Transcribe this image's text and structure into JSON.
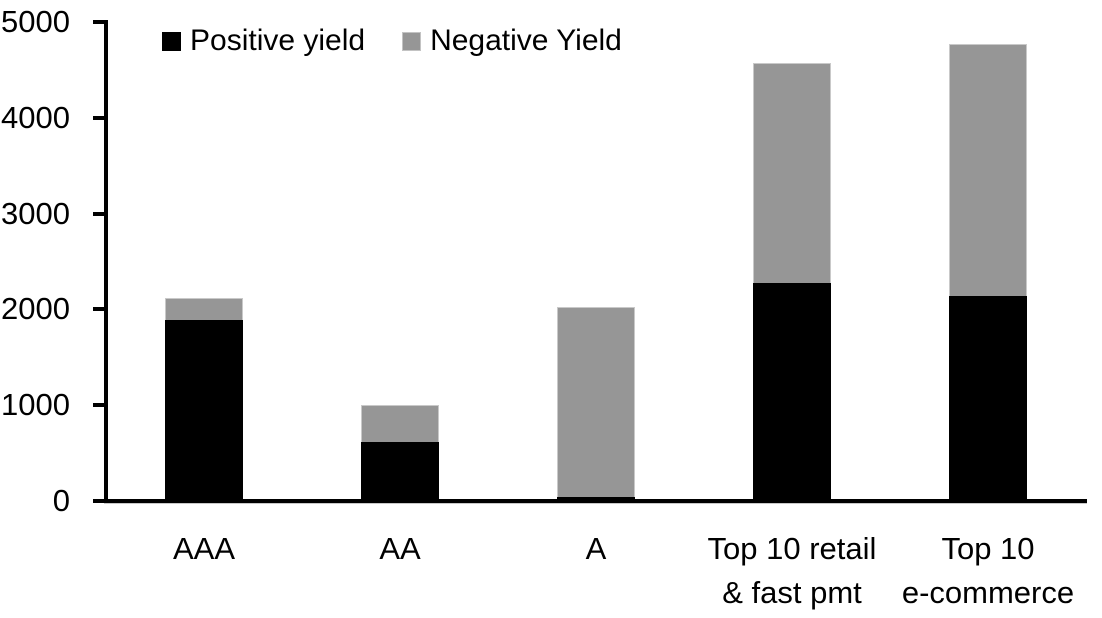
{
  "chart_data": {
    "type": "bar",
    "stacked": true,
    "title": "",
    "xlabel": "",
    "ylabel": "",
    "grid": false,
    "legend_position": "top",
    "background": "#ffffff",
    "axis_color": "#000000",
    "ylim": [
      0,
      5000
    ],
    "yticks": [
      0,
      1000,
      2000,
      3000,
      4000,
      5000
    ],
    "categories": [
      {
        "label_lines": [
          "AAA"
        ]
      },
      {
        "label_lines": [
          "AA"
        ]
      },
      {
        "label_lines": [
          "A"
        ]
      },
      {
        "label_lines": [
          "Top 10 retail",
          "& fast pmt"
        ]
      },
      {
        "label_lines": [
          "Top 10",
          "e-commerce"
        ]
      }
    ],
    "series": [
      {
        "name": "Positive yield",
        "color": "#000000",
        "values": [
          1890,
          620,
          40,
          2280,
          2140
        ]
      },
      {
        "name": "Negative Yield",
        "color": "#969696",
        "values": [
          230,
          380,
          1990,
          2290,
          2630
        ]
      }
    ],
    "totals": [
      2120,
      1000,
      2030,
      4570,
      4770
    ]
  }
}
